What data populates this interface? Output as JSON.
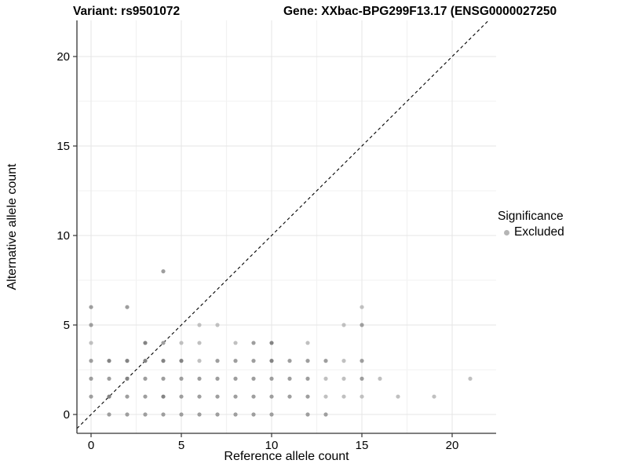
{
  "titles": {
    "variant": "Variant: rs9501072",
    "gene": "Gene: XXbac-BPG299F13.17 (ENSG0000027250"
  },
  "legend": {
    "title": "Significance",
    "items": [
      {
        "label": "Excluded",
        "color": "#b5b5b5"
      }
    ],
    "position": "right"
  },
  "chart_data": {
    "type": "scatter",
    "title_left": "Variant: rs9501072",
    "title_right": "Gene: XXbac-BPG299F13.17 (ENSG0000027250",
    "xlabel": "Reference allele count",
    "ylabel": "Alternative allele count",
    "x_ticks": [
      0,
      5,
      10,
      15,
      20
    ],
    "y_ticks": [
      0,
      5,
      10,
      15,
      20
    ],
    "xlim": [
      -0.8,
      22.4
    ],
    "ylim": [
      -1.1,
      22.0
    ],
    "grid": true,
    "identity_line": {
      "type": "y=x",
      "style": "dashed",
      "color": "#000000"
    },
    "point_colors": {
      "l": "#c0c0c0",
      "m": "#9e9e9e",
      "d": "#848484"
    },
    "series": [
      {
        "name": "Excluded",
        "points": [
          [
            1,
            0,
            "m"
          ],
          [
            2,
            0,
            "m"
          ],
          [
            3,
            0,
            "m"
          ],
          [
            4,
            0,
            "m"
          ],
          [
            5,
            0,
            "m"
          ],
          [
            6,
            0,
            "m"
          ],
          [
            7,
            0,
            "m"
          ],
          [
            8,
            0,
            "m"
          ],
          [
            9,
            0,
            "m"
          ],
          [
            10,
            0,
            "m"
          ],
          [
            12,
            0,
            "m"
          ],
          [
            13,
            0,
            "m"
          ],
          [
            0,
            1,
            "m"
          ],
          [
            1,
            1,
            "d"
          ],
          [
            2,
            1,
            "m"
          ],
          [
            3,
            1,
            "m"
          ],
          [
            4,
            1,
            "d"
          ],
          [
            5,
            1,
            "m"
          ],
          [
            6,
            1,
            "m"
          ],
          [
            7,
            1,
            "m"
          ],
          [
            8,
            1,
            "m"
          ],
          [
            9,
            1,
            "m"
          ],
          [
            10,
            1,
            "m"
          ],
          [
            11,
            1,
            "m"
          ],
          [
            12,
            1,
            "m"
          ],
          [
            13,
            1,
            "l"
          ],
          [
            14,
            1,
            "l"
          ],
          [
            15,
            1,
            "l"
          ],
          [
            17,
            1,
            "l"
          ],
          [
            19,
            1,
            "l"
          ],
          [
            0,
            2,
            "m"
          ],
          [
            1,
            2,
            "m"
          ],
          [
            2,
            2,
            "d"
          ],
          [
            3,
            2,
            "m"
          ],
          [
            4,
            2,
            "m"
          ],
          [
            5,
            2,
            "m"
          ],
          [
            6,
            2,
            "m"
          ],
          [
            7,
            2,
            "m"
          ],
          [
            8,
            2,
            "m"
          ],
          [
            9,
            2,
            "m"
          ],
          [
            10,
            2,
            "m"
          ],
          [
            11,
            2,
            "m"
          ],
          [
            12,
            2,
            "m"
          ],
          [
            13,
            2,
            "l"
          ],
          [
            14,
            2,
            "l"
          ],
          [
            15,
            2,
            "m"
          ],
          [
            16,
            2,
            "l"
          ],
          [
            21,
            2,
            "l"
          ],
          [
            0,
            3,
            "m"
          ],
          [
            1,
            3,
            "d"
          ],
          [
            2,
            3,
            "d"
          ],
          [
            3,
            3,
            "d"
          ],
          [
            4,
            3,
            "d"
          ],
          [
            5,
            3,
            "d"
          ],
          [
            6,
            3,
            "l"
          ],
          [
            7,
            3,
            "m"
          ],
          [
            8,
            3,
            "m"
          ],
          [
            9,
            3,
            "m"
          ],
          [
            10,
            3,
            "d"
          ],
          [
            11,
            3,
            "m"
          ],
          [
            12,
            3,
            "m"
          ],
          [
            13,
            3,
            "m"
          ],
          [
            14,
            3,
            "l"
          ],
          [
            15,
            3,
            "m"
          ],
          [
            0,
            4,
            "l"
          ],
          [
            3,
            4,
            "d"
          ],
          [
            4,
            4,
            "m"
          ],
          [
            5,
            4,
            "l"
          ],
          [
            6,
            4,
            "l"
          ],
          [
            8,
            4,
            "l"
          ],
          [
            9,
            4,
            "m"
          ],
          [
            10,
            4,
            "d"
          ],
          [
            12,
            4,
            "l"
          ],
          [
            0,
            5,
            "m"
          ],
          [
            6,
            5,
            "l"
          ],
          [
            7,
            5,
            "l"
          ],
          [
            14,
            5,
            "l"
          ],
          [
            15,
            5,
            "m"
          ],
          [
            0,
            6,
            "m"
          ],
          [
            2,
            6,
            "m"
          ],
          [
            15,
            6,
            "l"
          ],
          [
            4,
            8,
            "m"
          ]
        ]
      }
    ]
  }
}
